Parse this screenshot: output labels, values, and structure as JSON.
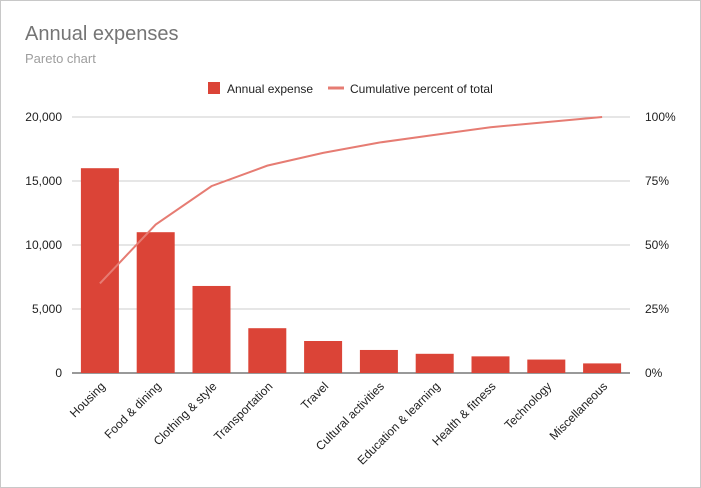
{
  "chart_data": {
    "type": "bar",
    "title": "Annual expenses",
    "subtitle": "Pareto chart",
    "categories": [
      "Housing",
      "Food & dining",
      "Clothing & style",
      "Transportation",
      "Travel",
      "Cultural activities",
      "Education & learning",
      "Health & fitness",
      "Technology",
      "Miscellaneous"
    ],
    "series": [
      {
        "name": "Annual expense",
        "type": "bar",
        "axis": "left",
        "color": "#db4437",
        "values": [
          16000,
          11000,
          6800,
          3500,
          2500,
          1800,
          1500,
          1300,
          1050,
          750
        ]
      },
      {
        "name": "Cumulative percent of total",
        "type": "line",
        "axis": "right",
        "color": "#e67c73",
        "values": [
          35,
          58,
          73,
          81,
          86,
          90,
          93,
          96,
          98,
          100
        ]
      }
    ],
    "y_left": {
      "min": 0,
      "max": 20000,
      "ticks": [
        "0",
        "5,000",
        "10,000",
        "15,000",
        "20,000"
      ]
    },
    "y_right": {
      "min": 0,
      "max": 100,
      "ticks": [
        "0%",
        "25%",
        "50%",
        "75%",
        "100%"
      ]
    },
    "grid": true,
    "legend_position": "top"
  }
}
